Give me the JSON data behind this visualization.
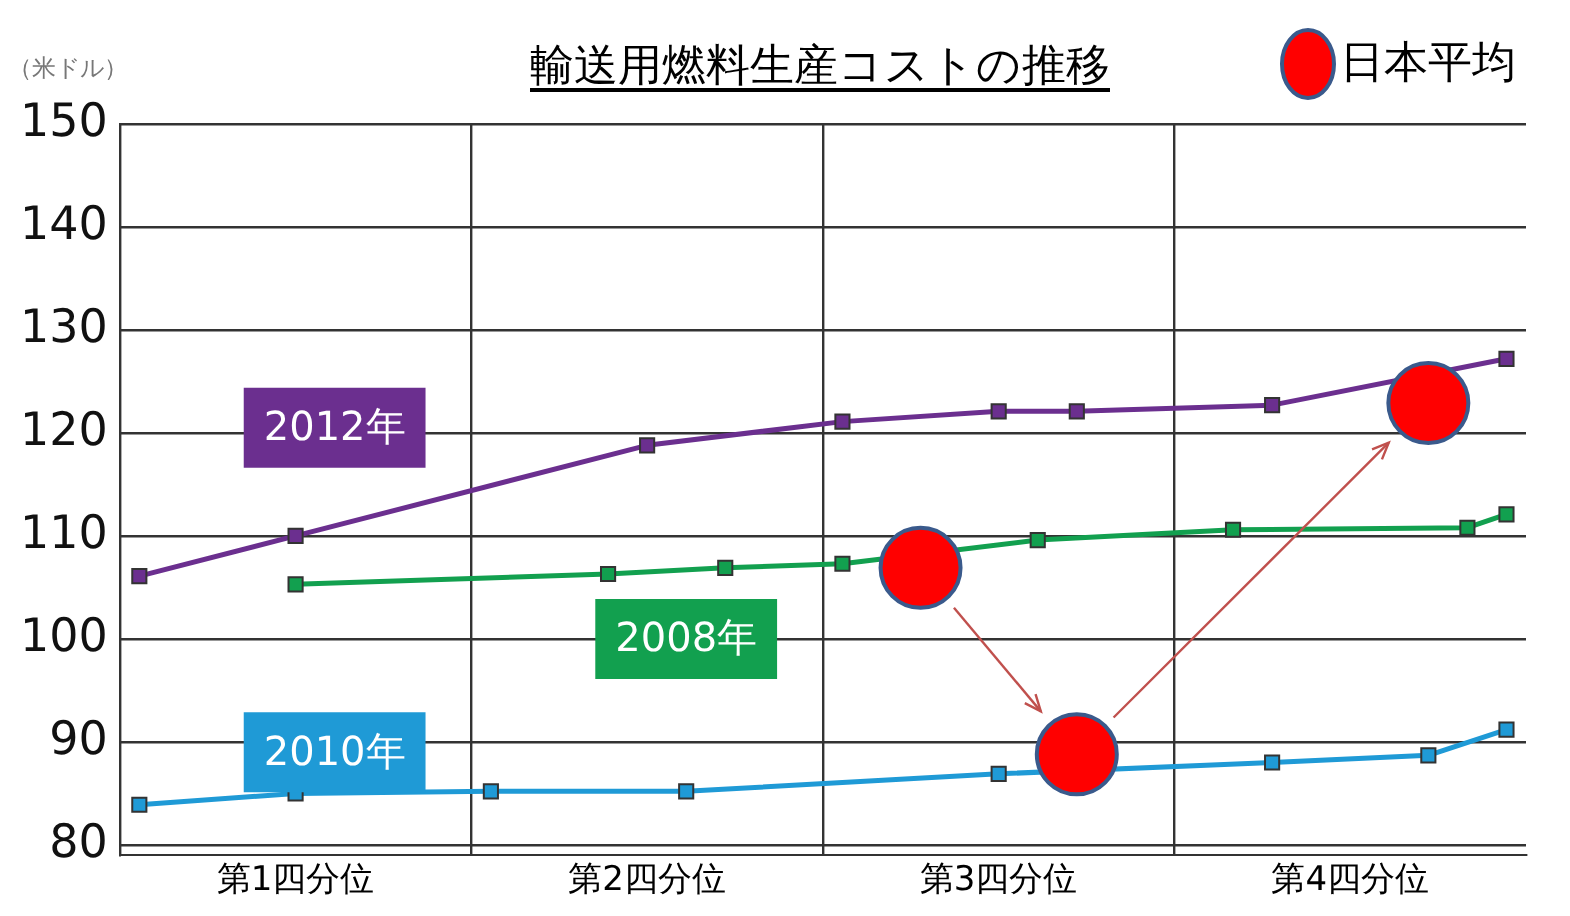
{
  "chart_data": {
    "type": "line",
    "title": "輸送用燃料生産コストの推移",
    "ylabel": "（米ドル）",
    "categories": [
      null,
      null,
      null,
      null,
      "第1四分位",
      null,
      null,
      null,
      null,
      null,
      null,
      null,
      null,
      "第2四分位",
      null,
      null,
      null,
      null,
      null,
      null,
      null,
      null,
      "第3四分位",
      null,
      null,
      null,
      null,
      null,
      null,
      null,
      null,
      "第4四分位",
      null,
      null,
      null,
      null
    ],
    "ylim": [
      79,
      150
    ],
    "yticks": [
      80,
      90,
      100,
      110,
      120,
      130,
      140,
      150
    ],
    "grid": true,
    "legend": "top right",
    "marker": "square",
    "line_style": "solid",
    "series": [
      {
        "name": "2012年",
        "color": "#6b2f8f",
        "values": [
          106.1,
          null,
          null,
          null,
          110,
          null,
          null,
          null,
          null,
          null,
          null,
          null,
          null,
          118.8,
          null,
          null,
          null,
          null,
          121.1,
          null,
          null,
          null,
          122.1,
          null,
          122.1,
          null,
          null,
          null,
          null,
          122.7,
          null,
          null,
          null,
          null,
          null,
          127.2
        ]
      },
      {
        "name": "2008年",
        "color": "#12a04f",
        "values": [
          null,
          null,
          null,
          null,
          105.3,
          null,
          null,
          null,
          null,
          null,
          null,
          null,
          106.3,
          null,
          null,
          106.9,
          null,
          null,
          107.3,
          null,
          null,
          null,
          null,
          109.6,
          null,
          null,
          null,
          null,
          110.6,
          null,
          null,
          null,
          null,
          null,
          110.8,
          112.1
        ]
      },
      {
        "name": "2010年",
        "color": "#1f9ad6",
        "values": [
          83.9,
          null,
          null,
          null,
          85.0,
          null,
          null,
          null,
          null,
          85.2,
          null,
          null,
          null,
          null,
          85.2,
          null,
          null,
          null,
          null,
          null,
          null,
          null,
          86.9,
          null,
          null,
          null,
          null,
          null,
          null,
          88.0,
          null,
          null,
          null,
          88.7,
          null,
          91.2
        ]
      },
      {
        "name": "日本平均",
        "type": "scatter",
        "marker": "circle",
        "color": "#ff0000",
        "values": [
          null,
          null,
          null,
          null,
          null,
          null,
          null,
          null,
          null,
          null,
          null,
          null,
          null,
          null,
          null,
          null,
          null,
          null,
          null,
          null,
          106.9,
          null,
          null,
          null,
          88.8,
          null,
          null,
          null,
          null,
          null,
          null,
          null,
          null,
          122.9,
          null,
          null
        ]
      }
    ]
  }
}
